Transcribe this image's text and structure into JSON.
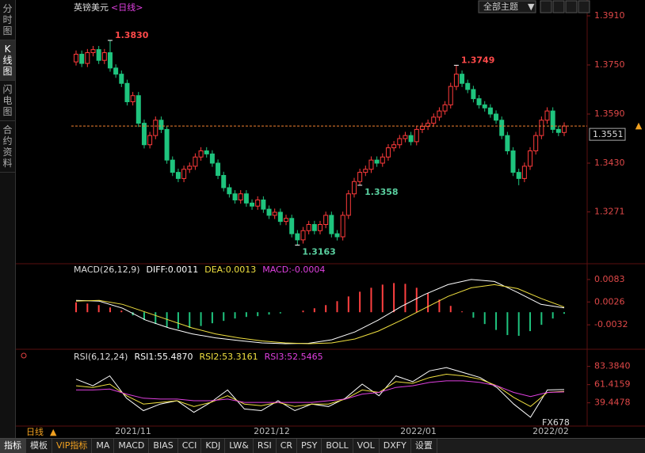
{
  "chart_data": [
    {
      "type": "candlestick",
      "title": "英镑美元",
      "subtitle": "<日线>",
      "open": [
        1.376,
        1.3785,
        1.3755,
        1.379,
        1.38,
        1.3765,
        1.379,
        1.374,
        1.372,
        1.369,
        1.363,
        1.365,
        1.356,
        1.349,
        1.352,
        1.357,
        1.354,
        1.344,
        1.34,
        1.338,
        1.341,
        1.342,
        1.345,
        1.347,
        1.346,
        1.343,
        1.339,
        1.335,
        1.333,
        1.331,
        1.333,
        1.33,
        1.329,
        1.331,
        1.328,
        1.326,
        1.327,
        1.324,
        1.325,
        1.32,
        1.318,
        1.321,
        1.323,
        1.321,
        1.323,
        1.326,
        1.32,
        1.319,
        1.326,
        1.333,
        1.337,
        1.34,
        1.341,
        1.344,
        1.343,
        1.345,
        1.348,
        1.349,
        1.351,
        1.352,
        1.35,
        1.354,
        1.355,
        1.356,
        1.358,
        1.36,
        1.362,
        1.368,
        1.372,
        1.369,
        1.367,
        1.364,
        1.362,
        1.361,
        1.359,
        1.357,
        1.352,
        1.347,
        1.34,
        1.338,
        1.342,
        1.347,
        1.352,
        1.357,
        1.36,
        1.354,
        1.353
      ],
      "high": [
        1.3797,
        1.3797,
        1.3802,
        1.3812,
        1.3812,
        1.3802,
        1.383,
        1.3752,
        1.3732,
        1.3702,
        1.3662,
        1.3662,
        1.3572,
        1.3532,
        1.3582,
        1.3582,
        1.3552,
        1.3452,
        1.3412,
        1.3422,
        1.3432,
        1.3462,
        1.3482,
        1.3482,
        1.3472,
        1.3442,
        1.3402,
        1.3362,
        1.3342,
        1.3342,
        1.3342,
        1.3312,
        1.3322,
        1.3322,
        1.3292,
        1.3282,
        1.3282,
        1.3262,
        1.3262,
        1.3212,
        1.3222,
        1.3242,
        1.3242,
        1.3242,
        1.3272,
        1.3272,
        1.3212,
        1.3272,
        1.3342,
        1.3382,
        1.3412,
        1.3422,
        1.3452,
        1.3452,
        1.3462,
        1.3492,
        1.3502,
        1.3522,
        1.3532,
        1.3532,
        1.3552,
        1.3562,
        1.3572,
        1.3592,
        1.3612,
        1.3632,
        1.3692,
        1.3749,
        1.3732,
        1.3702,
        1.3682,
        1.3652,
        1.3632,
        1.3622,
        1.3602,
        1.3582,
        1.3532,
        1.3482,
        1.3412,
        1.3432,
        1.3482,
        1.3532,
        1.3582,
        1.3612,
        1.3612,
        1.3552,
        1.3563
      ],
      "low": [
        1.3748,
        1.3743,
        1.3743,
        1.3778,
        1.3753,
        1.3753,
        1.3728,
        1.3708,
        1.3678,
        1.3618,
        1.3618,
        1.3548,
        1.3478,
        1.3478,
        1.3508,
        1.3528,
        1.3428,
        1.3388,
        1.3368,
        1.3368,
        1.3398,
        1.3408,
        1.3438,
        1.3448,
        1.3418,
        1.3378,
        1.3338,
        1.3318,
        1.3298,
        1.3298,
        1.3288,
        1.3278,
        1.3278,
        1.3268,
        1.3248,
        1.3248,
        1.3228,
        1.3228,
        1.3188,
        1.3163,
        1.3168,
        1.3198,
        1.3198,
        1.3198,
        1.3218,
        1.3188,
        1.3178,
        1.3178,
        1.3248,
        1.3318,
        1.3358,
        1.3388,
        1.3398,
        1.3418,
        1.3418,
        1.3438,
        1.3468,
        1.3478,
        1.3498,
        1.3488,
        1.3488,
        1.3528,
        1.3538,
        1.3548,
        1.3568,
        1.3588,
        1.3608,
        1.3668,
        1.3678,
        1.3658,
        1.3628,
        1.3608,
        1.3598,
        1.3578,
        1.3558,
        1.3508,
        1.3458,
        1.3388,
        1.3358,
        1.3368,
        1.3408,
        1.3458,
        1.3508,
        1.3558,
        1.3528,
        1.3518,
        1.3518
      ],
      "close": [
        1.3785,
        1.3755,
        1.379,
        1.38,
        1.3765,
        1.379,
        1.374,
        1.372,
        1.369,
        1.363,
        1.365,
        1.356,
        1.349,
        1.352,
        1.357,
        1.354,
        1.344,
        1.34,
        1.338,
        1.341,
        1.342,
        1.345,
        1.347,
        1.346,
        1.343,
        1.339,
        1.335,
        1.333,
        1.331,
        1.333,
        1.33,
        1.329,
        1.331,
        1.328,
        1.326,
        1.327,
        1.324,
        1.325,
        1.32,
        1.318,
        1.321,
        1.323,
        1.321,
        1.323,
        1.326,
        1.32,
        1.319,
        1.326,
        1.333,
        1.337,
        1.34,
        1.341,
        1.344,
        1.343,
        1.345,
        1.348,
        1.349,
        1.351,
        1.352,
        1.35,
        1.354,
        1.355,
        1.356,
        1.358,
        1.36,
        1.362,
        1.368,
        1.372,
        1.369,
        1.367,
        1.364,
        1.362,
        1.361,
        1.359,
        1.357,
        1.352,
        1.347,
        1.34,
        1.338,
        1.342,
        1.347,
        1.352,
        1.357,
        1.36,
        1.354,
        1.353,
        1.3551
      ],
      "up_color": "#ff3b3b",
      "down_color": "#1fc47e",
      "ylim": [
        1.311,
        1.3941
      ],
      "yticks": [
        {
          "value": 1.391,
          "label": "1.3910"
        },
        {
          "value": 1.375,
          "label": "1.3750"
        },
        {
          "value": 1.359,
          "label": "1.3590"
        },
        {
          "value": 1.343,
          "label": "1.3430"
        },
        {
          "value": 1.3271,
          "label": "1.3271"
        }
      ],
      "annotations": [
        {
          "value": 1.383,
          "label": "1.3830"
        },
        {
          "value": 1.3749,
          "label": "1.3749"
        },
        {
          "value": 1.3163,
          "label": "1.3163"
        },
        {
          "value": 1.3358,
          "label": "1.3358"
        }
      ],
      "last_price": {
        "value": 1.3551,
        "label": "1.3551"
      },
      "x_labels": [
        "2021/11",
        "2021/12",
        "2022/01",
        "2022/02"
      ]
    },
    {
      "type": "macd",
      "name": "MACD(26,12,9)",
      "legend": [
        "DIFF:0.0011",
        "DEA:0.0013",
        "MACD:-0.0004"
      ],
      "legend_colors": [
        "#ffffff",
        "#f0e040",
        "#e040e0"
      ],
      "values": [
        0.0025,
        0.0022,
        0.0018,
        0.0012,
        0.0004,
        -0.0008,
        -0.002,
        -0.003,
        -0.0038,
        -0.0042,
        -0.004,
        -0.0035,
        -0.0028,
        -0.0022,
        -0.0016,
        -0.0012,
        -0.001,
        -0.0006,
        -0.0003,
        0.0,
        0.0004,
        0.001,
        0.0018,
        0.0028,
        0.004,
        0.0052,
        0.0062,
        0.007,
        0.0074,
        0.0072,
        0.0062,
        0.0048,
        0.0032,
        0.0016,
        0.0002,
        -0.0014,
        -0.003,
        -0.0045,
        -0.0058,
        -0.006,
        -0.0048,
        -0.0032,
        -0.0016,
        -0.0004
      ],
      "up_color": "#ff4040",
      "down_color": "#1fc47e",
      "series": [
        {
          "color": "#ffffff",
          "values": [
            0.003,
            0.0028,
            0.001,
            -0.002,
            -0.004,
            -0.0055,
            -0.0065,
            -0.0072,
            -0.0078,
            -0.008,
            -0.0079,
            -0.007,
            -0.005,
            -0.002,
            0.0015,
            0.0045,
            0.007,
            0.0083,
            0.0078,
            0.005,
            0.002,
            0.0011
          ]
        },
        {
          "color": "#f0e040",
          "values": [
            0.0028,
            0.003,
            0.002,
            0.0,
            -0.002,
            -0.004,
            -0.0055,
            -0.0065,
            -0.0073,
            -0.0078,
            -0.008,
            -0.0078,
            -0.0068,
            -0.0048,
            -0.002,
            0.001,
            0.004,
            0.0062,
            0.007,
            0.006,
            0.0035,
            0.0013
          ]
        }
      ],
      "ylim": [
        -0.0088,
        0.0117
      ],
      "yticks": [
        0.0083,
        0.0026,
        -0.0032
      ]
    },
    {
      "type": "line",
      "name": "RSI(6,12,24)",
      "legend": [
        "RSI1:55.4870",
        "RSI2:53.3161",
        "RSI3:52.5465"
      ],
      "legend_colors": [
        "#ffffff",
        "#f0e040",
        "#e040e0"
      ],
      "series": [
        {
          "color": "#ffffff",
          "values": [
            68,
            60,
            72,
            45,
            30,
            38,
            42,
            28,
            40,
            55,
            32,
            30,
            42,
            30,
            38,
            35,
            45,
            62,
            48,
            72,
            65,
            78,
            82,
            76,
            70,
            58,
            38,
            22,
            55,
            55.487
          ]
        },
        {
          "color": "#f0e040",
          "values": [
            60,
            58,
            62,
            48,
            38,
            40,
            42,
            35,
            40,
            48,
            38,
            36,
            40,
            35,
            38,
            38,
            44,
            55,
            52,
            65,
            63,
            70,
            74,
            72,
            68,
            60,
            46,
            35,
            52,
            53.3161
          ]
        },
        {
          "color": "#e040e0",
          "values": [
            55,
            55,
            56,
            50,
            45,
            44,
            44,
            42,
            42,
            44,
            40,
            40,
            40,
            40,
            40,
            42,
            44,
            50,
            52,
            58,
            60,
            64,
            66,
            66,
            64,
            60,
            52,
            47,
            52,
            52.5465
          ]
        }
      ],
      "ylim": [
        11.4,
        99.3
      ],
      "yticks": [
        {
          "value": 83.384,
          "label": "83.3840"
        },
        {
          "value": 61.4159,
          "label": "61.4159"
        },
        {
          "value": 39.4478,
          "label": "39.4478"
        }
      ]
    }
  ],
  "ui": {
    "sidebar": [
      "分时图",
      "K线图",
      "闪电图",
      "合约资料"
    ],
    "theme_button": "全部主题",
    "period": "日线",
    "tabs": [
      "指标",
      "模板",
      "VIP指标",
      "MA",
      "MACD",
      "BIAS",
      "CCI",
      "KDJ",
      "LW&",
      "RSI",
      "CR",
      "PSY",
      "BOLL",
      "VOL",
      "DXFY",
      "设置"
    ],
    "watermark": "FX678"
  }
}
